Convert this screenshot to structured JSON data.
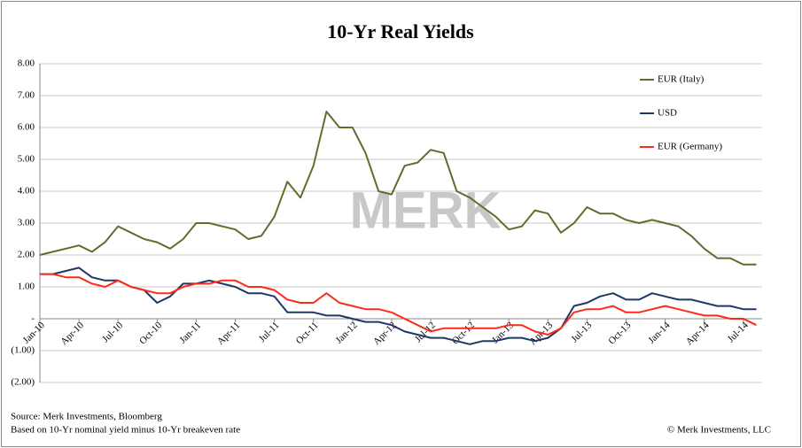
{
  "chart_data": {
    "type": "line",
    "title": "10-Yr Real Yields",
    "watermark": "MERK",
    "categories": [
      "Jan-10",
      null,
      null,
      "Apr-10",
      null,
      null,
      "Jul-10",
      null,
      null,
      "Oct-10",
      null,
      null,
      "Jan-11",
      null,
      null,
      "Apr-11",
      null,
      null,
      "Jul-11",
      null,
      null,
      "Oct-11",
      null,
      null,
      "Jan-12",
      null,
      null,
      "Apr-12",
      null,
      null,
      "Jul-12",
      null,
      null,
      "Oct-12",
      null,
      null,
      "Jan-13",
      null,
      null,
      "Apr-13",
      null,
      null,
      "Jul-13",
      null,
      null,
      "Oct-13",
      null,
      null,
      "Jan-14",
      null,
      null,
      "Apr-14",
      null,
      null,
      "Jul-14",
      null
    ],
    "series": [
      {
        "name": "EUR (Italy)",
        "color": "#5e6e2e",
        "values": [
          2.0,
          2.1,
          2.2,
          2.3,
          2.1,
          2.4,
          2.9,
          2.7,
          2.5,
          2.4,
          2.2,
          2.5,
          3.0,
          3.0,
          2.9,
          2.8,
          2.5,
          2.6,
          3.2,
          4.3,
          3.8,
          4.8,
          6.5,
          6.0,
          6.0,
          5.2,
          4.0,
          3.9,
          4.8,
          4.9,
          5.3,
          5.2,
          4.0,
          3.8,
          3.5,
          3.2,
          2.8,
          2.9,
          3.4,
          3.3,
          2.7,
          3.0,
          3.5,
          3.3,
          3.3,
          3.1,
          3.0,
          3.1,
          3.0,
          2.9,
          2.6,
          2.2,
          1.9,
          1.9,
          1.7,
          1.7
        ]
      },
      {
        "name": "USD",
        "color": "#1f3864",
        "values": [
          1.4,
          1.4,
          1.5,
          1.6,
          1.3,
          1.2,
          1.2,
          1.0,
          0.9,
          0.5,
          0.7,
          1.1,
          1.1,
          1.2,
          1.1,
          1.0,
          0.8,
          0.8,
          0.7,
          0.2,
          0.2,
          0.2,
          0.1,
          0.1,
          0.0,
          -0.1,
          -0.1,
          -0.2,
          -0.4,
          -0.5,
          -0.6,
          -0.6,
          -0.7,
          -0.8,
          -0.7,
          -0.7,
          -0.6,
          -0.6,
          -0.7,
          -0.6,
          -0.3,
          0.4,
          0.5,
          0.7,
          0.8,
          0.6,
          0.6,
          0.8,
          0.7,
          0.6,
          0.6,
          0.5,
          0.4,
          0.4,
          0.3,
          0.3
        ]
      },
      {
        "name": "EUR (Germany)",
        "color": "#ff2a1a",
        "values": [
          1.4,
          1.4,
          1.3,
          1.3,
          1.1,
          1.0,
          1.2,
          1.0,
          0.9,
          0.8,
          0.8,
          1.0,
          1.1,
          1.1,
          1.2,
          1.2,
          1.0,
          1.0,
          0.9,
          0.6,
          0.5,
          0.5,
          0.8,
          0.5,
          0.4,
          0.3,
          0.3,
          0.2,
          0.0,
          -0.2,
          -0.4,
          -0.3,
          -0.3,
          -0.3,
          -0.3,
          -0.3,
          -0.2,
          -0.2,
          -0.4,
          -0.5,
          -0.3,
          0.2,
          0.3,
          0.3,
          0.4,
          0.2,
          0.2,
          0.3,
          0.4,
          0.3,
          0.2,
          0.1,
          0.1,
          0.0,
          0.0,
          -0.2
        ]
      }
    ],
    "ylim": [
      -2,
      8
    ],
    "yticks": [
      {
        "value": 8,
        "label": "8.00"
      },
      {
        "value": 7,
        "label": "7.00"
      },
      {
        "value": 6,
        "label": "6.00"
      },
      {
        "value": 5,
        "label": "5.00"
      },
      {
        "value": 4,
        "label": "4.00"
      },
      {
        "value": 3,
        "label": "3.00"
      },
      {
        "value": 2,
        "label": "2.00"
      },
      {
        "value": 1,
        "label": "1.00"
      },
      {
        "value": 0,
        "label": "-"
      },
      {
        "value": -1,
        "label": "(1.00)"
      },
      {
        "value": -2,
        "label": "(2.00)"
      }
    ],
    "grid": true,
    "legend": "right",
    "notes": [
      "Source: Merk Investments, Bloomberg",
      "Based on 10-Yr nominal yield minus 10-Yr breakeven rate"
    ],
    "copyright": "© Merk Investments, LLC"
  }
}
